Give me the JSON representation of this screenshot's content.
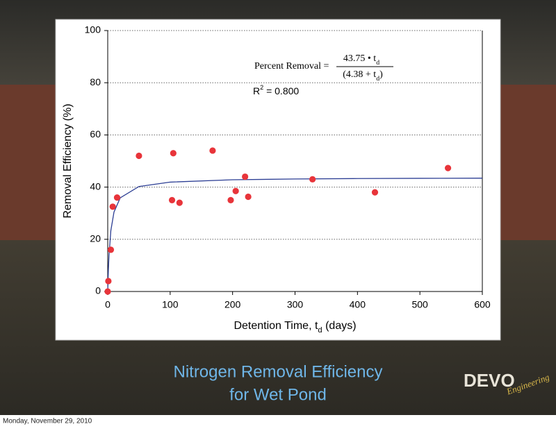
{
  "chart_data": {
    "type": "scatter",
    "x_label": [
      "Detention Time, t",
      "d",
      " (days)"
    ],
    "y_label": "Removal Efficiency (%)",
    "equation": {
      "lhs": "Percent Removal =",
      "numerator": [
        "43.75 • t",
        "d"
      ],
      "denominator": [
        "(4.38 + t",
        "d",
        ")"
      ]
    },
    "r_squared": [
      "R",
      "2",
      " = 0.800"
    ],
    "xlim": [
      0,
      600
    ],
    "xticks": [
      0,
      100,
      200,
      300,
      400,
      500,
      600
    ],
    "ylim": [
      0,
      100
    ],
    "yticks": [
      0,
      20,
      40,
      60,
      80,
      100
    ],
    "grid": true,
    "series": [
      {
        "color": "#e8343a",
        "x": [
          0,
          1,
          5,
          8,
          15,
          50,
          103,
          105,
          115,
          168,
          197,
          205,
          220,
          225,
          328,
          428,
          545
        ],
        "values": [
          0,
          4,
          16,
          32.5,
          36,
          52,
          35,
          53,
          34,
          54,
          35,
          38.5,
          44,
          36.3,
          43,
          38,
          47.3
        ]
      },
      {
        "type": "line",
        "color": "#2c3e94",
        "x": [
          0,
          1,
          2,
          5,
          10,
          20,
          50,
          100,
          200,
          300,
          400,
          500,
          600
        ],
        "values": [
          0,
          8.13,
          13.72,
          23.32,
          30.42,
          35.89,
          40.23,
          41.91,
          42.81,
          43.12,
          43.28,
          43.37,
          43.43
        ]
      }
    ]
  },
  "slide": {
    "title": [
      "Nitrogen Removal Efficiency",
      "for Wet Pond"
    ],
    "logo": [
      "DEVO",
      "Engineering"
    ],
    "footer": "Monday, November 29, 2010"
  }
}
